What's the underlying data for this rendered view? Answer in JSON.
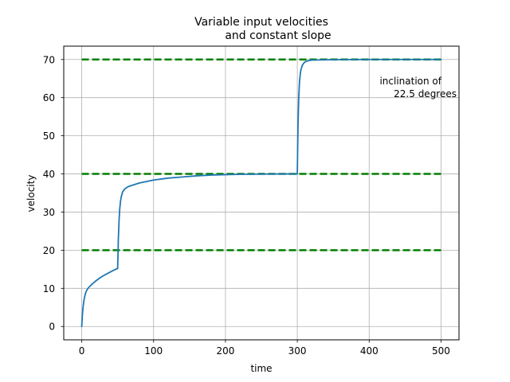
{
  "chart_data": {
    "type": "line",
    "title_lines": [
      "Variable input velocities",
      "and constant slope"
    ],
    "xlabel": "time",
    "ylabel": "velocity",
    "xlim": [
      -25,
      525
    ],
    "ylim": [
      -3.5,
      73.5
    ],
    "xticks": [
      0,
      100,
      200,
      300,
      400,
      500
    ],
    "yticks": [
      0,
      10,
      20,
      30,
      40,
      50,
      60,
      70
    ],
    "grid": true,
    "annotation_lines": [
      "inclination of",
      "22.5 degrees"
    ],
    "reference_lines": {
      "values": [
        20,
        40,
        70
      ],
      "x_range": [
        0,
        500
      ],
      "color": "#008000",
      "style": "dashed"
    },
    "series": [
      {
        "color": "#1f77b4",
        "points": [
          [
            0,
            0
          ],
          [
            1,
            3.2
          ],
          [
            2,
            5.3
          ],
          [
            3,
            6.7
          ],
          [
            4,
            7.7
          ],
          [
            5,
            8.5
          ],
          [
            6,
            9.1
          ],
          [
            8,
            9.8
          ],
          [
            10,
            10.3
          ],
          [
            15,
            11.2
          ],
          [
            20,
            12.0
          ],
          [
            25,
            12.7
          ],
          [
            30,
            13.3
          ],
          [
            35,
            13.8
          ],
          [
            40,
            14.3
          ],
          [
            45,
            14.8
          ],
          [
            50,
            15.2
          ],
          [
            51,
            23.0
          ],
          [
            52,
            28.0
          ],
          [
            53,
            31.0
          ],
          [
            54,
            32.8
          ],
          [
            55,
            34.0
          ],
          [
            57,
            35.3
          ],
          [
            60,
            36.1
          ],
          [
            65,
            36.7
          ],
          [
            70,
            37.0
          ],
          [
            80,
            37.6
          ],
          [
            90,
            38.0
          ],
          [
            100,
            38.4
          ],
          [
            120,
            38.9
          ],
          [
            140,
            39.2
          ],
          [
            160,
            39.5
          ],
          [
            180,
            39.7
          ],
          [
            200,
            39.8
          ],
          [
            220,
            39.9
          ],
          [
            250,
            39.95
          ],
          [
            280,
            40.0
          ],
          [
            300,
            40.0
          ],
          [
            301,
            53.0
          ],
          [
            302,
            60.0
          ],
          [
            303,
            64.0
          ],
          [
            304,
            66.0
          ],
          [
            305,
            67.3
          ],
          [
            307,
            68.5
          ],
          [
            310,
            69.3
          ],
          [
            315,
            69.7
          ],
          [
            320,
            69.85
          ],
          [
            350,
            69.95
          ],
          [
            400,
            70.0
          ],
          [
            450,
            70.0
          ],
          [
            500,
            70.0
          ]
        ]
      }
    ]
  }
}
